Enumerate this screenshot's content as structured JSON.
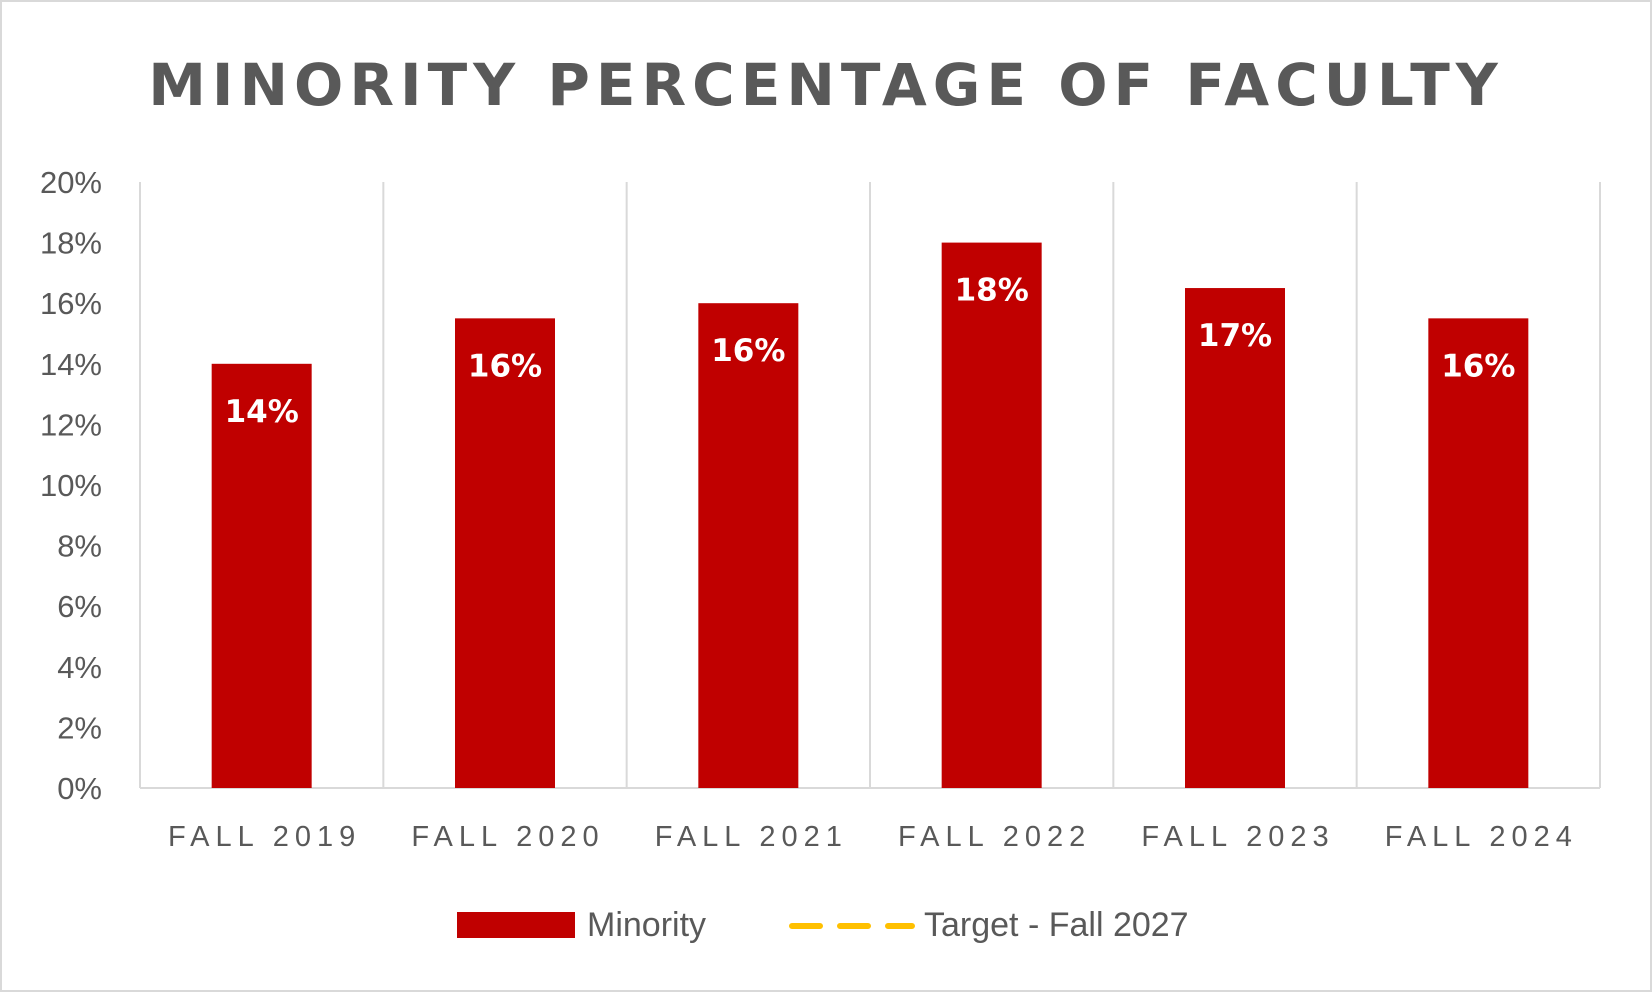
{
  "chart_data": {
    "type": "bar",
    "title": "MINORITY PERCENTAGE OF FACULTY",
    "categories": [
      "FALL 2019",
      "FALL 2020",
      "FALL 2021",
      "FALL 2022",
      "FALL 2023",
      "FALL 2024"
    ],
    "series": [
      {
        "name": "Minority",
        "values": [
          0.14,
          0.155,
          0.16,
          0.18,
          0.165,
          0.155
        ],
        "data_labels": [
          "14%",
          "16%",
          "16%",
          "18%",
          "17%",
          "16%"
        ],
        "color": "#c00000"
      },
      {
        "name": "Target - Fall 2027",
        "style": "dashed line",
        "color": "#ffc000"
      }
    ],
    "ylim": [
      0,
      0.2
    ],
    "yticks": [
      0,
      0.02,
      0.04,
      0.06,
      0.08,
      0.1,
      0.12,
      0.14,
      0.16,
      0.18,
      0.2
    ],
    "ytick_labels": [
      "0%",
      "2%",
      "4%",
      "6%",
      "8%",
      "10%",
      "12%",
      "14%",
      "16%",
      "18%",
      "20%"
    ],
    "xlabel": "",
    "ylabel": "",
    "grid": "vertical separators between categories",
    "legend_position": "bottom"
  }
}
